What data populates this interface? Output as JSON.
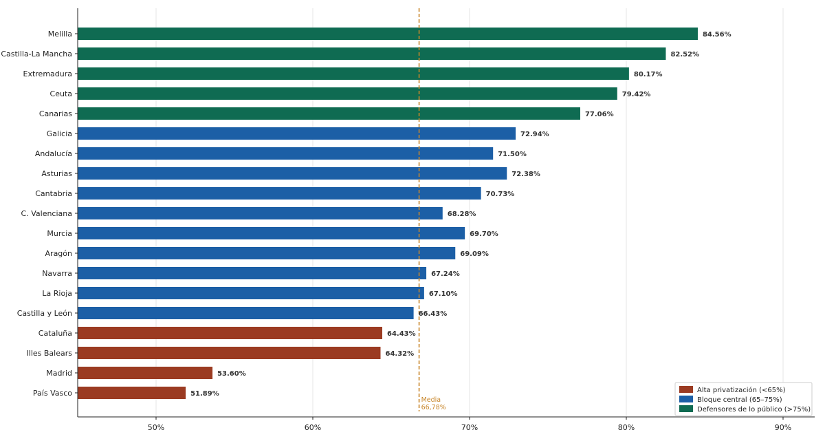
{
  "chart_data": {
    "type": "bar",
    "orientation": "horizontal",
    "categories": [
      "Melilla",
      "Castilla-La Mancha",
      "Extremadura",
      "Ceuta",
      "Canarias",
      "Galicia",
      "Andalucía",
      "Asturias",
      "Cantabria",
      "C. Valenciana",
      "Murcia",
      "Aragón",
      "Navarra",
      "La Rioja",
      "Castilla y León",
      "Cataluña",
      "Illes Balears",
      "Madrid",
      "País Vasco"
    ],
    "values": [
      84.56,
      82.52,
      80.17,
      79.42,
      77.06,
      72.94,
      71.5,
      72.38,
      70.73,
      68.28,
      69.7,
      69.09,
      67.24,
      67.1,
      66.43,
      64.43,
      64.32,
      53.6,
      51.89
    ],
    "value_labels": [
      "84.56%",
      "82.52%",
      "80.17%",
      "79.42%",
      "77.06%",
      "72.94%",
      "71.50%",
      "72.38%",
      "70.73%",
      "68.28%",
      "69.70%",
      "69.09%",
      "67.24%",
      "67.10%",
      "66.43%",
      "64.43%",
      "64.32%",
      "53.60%",
      "51.89%"
    ],
    "groups": [
      "green",
      "green",
      "green",
      "green",
      "green",
      "blue",
      "blue",
      "blue",
      "blue",
      "blue",
      "blue",
      "blue",
      "blue",
      "blue",
      "blue",
      "red",
      "red",
      "red",
      "red"
    ],
    "xlim": [
      45,
      92
    ],
    "x_ticks": [
      50,
      60,
      70,
      80,
      90
    ],
    "x_tick_labels": [
      "50%",
      "60%",
      "70%",
      "80%",
      "90%"
    ],
    "grid": "vertical",
    "reference_line": {
      "value": 66.78,
      "label_1": "Media",
      "label_2": "66,78%",
      "color": "#c8862a"
    },
    "legend": {
      "position": "bottom-right",
      "items": [
        {
          "key": "red",
          "label": "Alta privatización (<65%)"
        },
        {
          "key": "blue",
          "label": "Bloque central (65–75%)"
        },
        {
          "key": "green",
          "label": "Defensores de lo público (>75%)"
        }
      ]
    },
    "colors": {
      "red": "#9b3b22",
      "blue": "#1c5fa6",
      "green": "#0f6b52"
    }
  }
}
